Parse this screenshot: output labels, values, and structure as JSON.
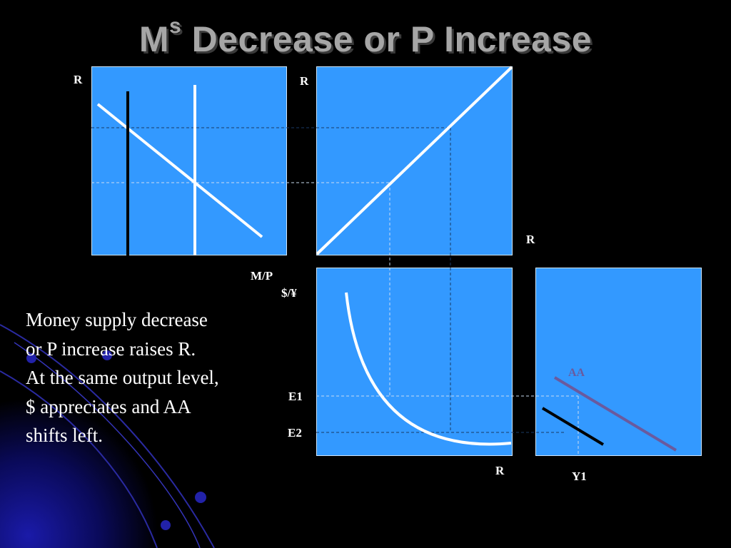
{
  "title": {
    "main": "M",
    "sup": "s",
    "rest": " Decrease or P Increase"
  },
  "labels": {
    "money_r_axis": "R",
    "fx_r_axis": "R",
    "right_r": "R",
    "mp_axis": "M/P",
    "exchange_rate_axis": "$/¥",
    "e1": "E1",
    "e2": "E2",
    "bottom_r": "R",
    "y1": "Y1",
    "aa": "AA"
  },
  "caption": [
    "Money supply decrease",
    "or P increase raises R.",
    "At the same output level,",
    "$ appreciates and AA",
    "shifts left."
  ],
  "colors": {
    "panel": "#3399ff",
    "background": "#000000",
    "aa_curve": "#6a5a9e",
    "title": "#a6a6a6"
  }
}
